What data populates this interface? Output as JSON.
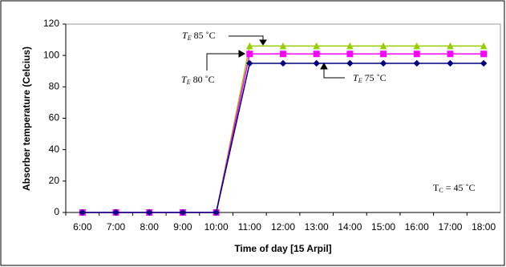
{
  "chart_data": {
    "type": "line",
    "x_label": "Time of day [15 Arpil]",
    "y_label": "Absorber temperature (Celcius)",
    "categories": [
      "6:00",
      "7:00",
      "8:00",
      "9:00",
      "10:00",
      "11:00",
      "12:00",
      "13:00",
      "14:00",
      "15:00",
      "16:00",
      "17:00",
      "18:00"
    ],
    "series": [
      {
        "color": "#99cc00",
        "marker": "triangle",
        "values": [
          0,
          0,
          0,
          0,
          0,
          106,
          106,
          106,
          106,
          106,
          106,
          106,
          106
        ]
      },
      {
        "color": "#ff00ff",
        "marker": "square",
        "values": [
          0,
          0,
          0,
          0,
          0,
          101,
          101,
          101,
          101,
          101,
          101,
          101,
          101
        ]
      },
      {
        "color": "#000080",
        "marker": "diamond",
        "values": [
          0,
          0,
          0,
          0,
          0,
          95,
          95,
          95,
          95,
          95,
          95,
          95,
          95
        ]
      }
    ],
    "ylim": [
      0,
      120
    ],
    "yticks": [
      0,
      20,
      40,
      60,
      80,
      100,
      120
    ],
    "annotations": [
      {
        "symbol": "T",
        "subscript": "E",
        "text": " 85 ˚C"
      },
      {
        "symbol": "T",
        "subscript": "E",
        "text": " 80 ˚C"
      },
      {
        "symbol": "T",
        "subscript": "E",
        "text": " 75 ˚C"
      },
      {
        "symbol": "T",
        "subscript": "C",
        "text": " = 45 ˚C"
      }
    ]
  }
}
